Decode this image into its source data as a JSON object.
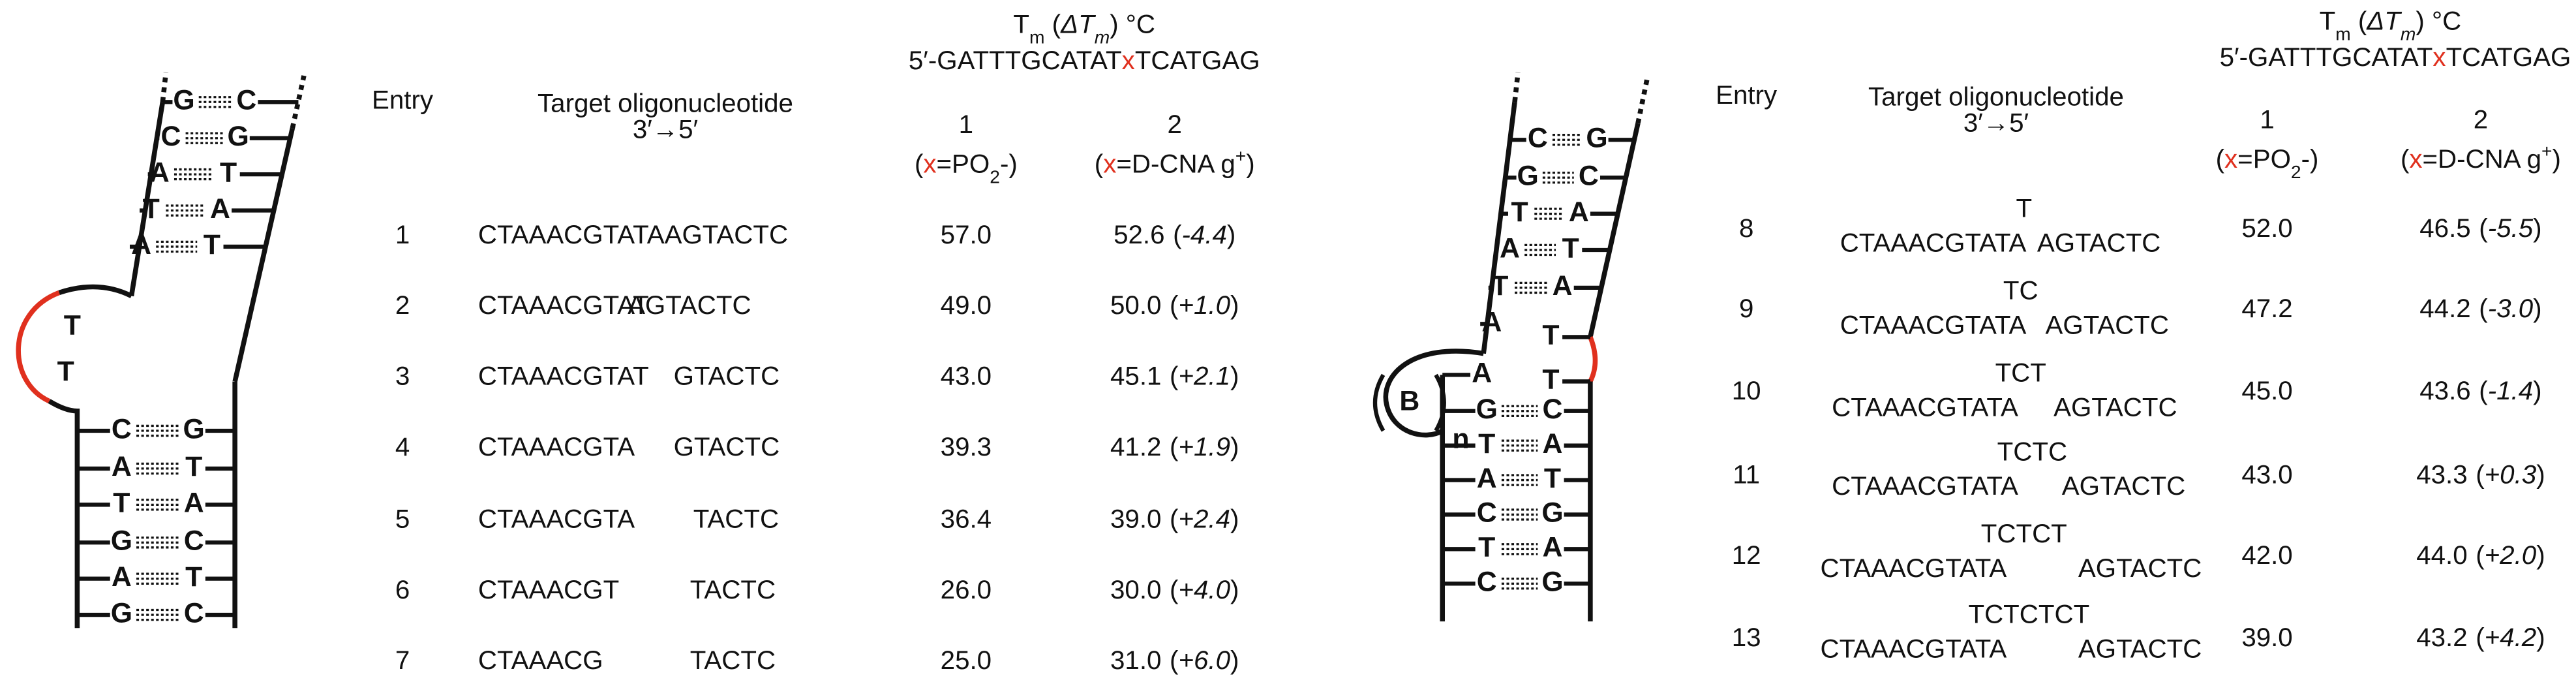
{
  "left_diagram": {
    "top_pairs": [
      [
        "G",
        "C"
      ],
      [
        "C",
        "G"
      ],
      [
        "A",
        "T"
      ],
      [
        "T",
        "A"
      ],
      [
        "A",
        "T"
      ]
    ],
    "loop": [
      "T",
      "T"
    ],
    "bottom_pairs": [
      [
        "C",
        "G"
      ],
      [
        "A",
        "T"
      ],
      [
        "T",
        "A"
      ],
      [
        "G",
        "C"
      ],
      [
        "A",
        "T"
      ],
      [
        "G",
        "C"
      ]
    ]
  },
  "left_table": {
    "header": {
      "entry": "Entry",
      "target": "Target oligonucleotide",
      "direction": "3′→5′",
      "tm": [
        "T",
        "m",
        " (",
        "ΔT",
        "m",
        ") °C"
      ],
      "sequence": [
        "5′-GATTTGCATAT",
        "x",
        "TCATGAG"
      ],
      "col1": {
        "number": "1",
        "label": [
          "(",
          "x",
          "=PO",
          "2",
          "-)"
        ]
      },
      "col2": {
        "number": "2",
        "label": [
          "(",
          "x",
          "=D-CNA g",
          "+",
          ")"
        ]
      }
    },
    "rows": [
      {
        "entry": "1",
        "target": [
          "CTAAACGTATAAGTACTC"
        ],
        "tm1": "57.0",
        "tm2": "52.6",
        "dtm": "(-4.4)"
      },
      {
        "entry": "2",
        "target": [
          "CTAAACGTAT",
          "AGTACTC"
        ],
        "tm1": "49.0",
        "tm2": "50.0",
        "dtm": "(+1.0)"
      },
      {
        "entry": "3",
        "target": [
          "CTAAACGTAT",
          "GTACTC"
        ],
        "tm1": "43.0",
        "tm2": "45.1",
        "dtm": "(+2.1)"
      },
      {
        "entry": "4",
        "target": [
          "CTAAACGTA",
          "GTACTC"
        ],
        "tm1": "39.3",
        "tm2": "41.2",
        "dtm": "(+1.9)"
      },
      {
        "entry": "5",
        "target": [
          "CTAAACGTA",
          "TACTC"
        ],
        "tm1": "36.4",
        "tm2": "39.0",
        "dtm": "(+2.4)"
      },
      {
        "entry": "6",
        "target": [
          "CTAAACGT",
          "TACTC"
        ],
        "tm1": "26.0",
        "tm2": "30.0",
        "dtm": "(+4.0)"
      },
      {
        "entry": "7",
        "target": [
          "CTAAACG",
          "TACTC"
        ],
        "tm1": "25.0",
        "tm2": "31.0",
        "dtm": "(+6.0)"
      }
    ]
  },
  "right_diagram": {
    "top_pairs": [
      [
        "C",
        "G"
      ],
      [
        "G",
        "C"
      ],
      [
        "T",
        "A"
      ],
      [
        "A",
        "T"
      ],
      [
        "T",
        "A"
      ]
    ],
    "unpaired": [
      [
        "A",
        "T"
      ],
      [
        "A",
        "T"
      ]
    ],
    "bulge": {
      "base": "B",
      "subscript": "n"
    },
    "bottom_pairs": [
      [
        "G",
        "C"
      ],
      [
        "T",
        "A"
      ],
      [
        "A",
        "T"
      ],
      [
        "C",
        "G"
      ],
      [
        "T",
        "A"
      ],
      [
        "C",
        "G"
      ]
    ]
  },
  "right_table": {
    "header": {
      "entry": "Entry",
      "target": "Target oligonucleotide",
      "direction": "3′→5′",
      "tm": [
        "T",
        "m",
        " (",
        "ΔT",
        "m",
        ") °C"
      ],
      "sequence": [
        "5′-GATTTGCATAT",
        "x",
        "TCATGAG"
      ],
      "col1": {
        "number": "1",
        "label": [
          "(",
          "x",
          "=PO",
          "2",
          "-)"
        ]
      },
      "col2": {
        "number": "2",
        "label": [
          "(",
          "x",
          "=D-CNA g",
          "+",
          ")"
        ]
      }
    },
    "rows": [
      {
        "entry": "8",
        "insert": "T",
        "target": [
          "CTAAACGTATA",
          "AGTACTC"
        ],
        "tm1": "52.0",
        "tm2": "46.5",
        "dtm": "(-5.5)"
      },
      {
        "entry": "9",
        "insert": "TC",
        "target": [
          "CTAAACGTATA",
          "AGTACTC"
        ],
        "tm1": "47.2",
        "tm2": "44.2",
        "dtm": "(-3.0)"
      },
      {
        "entry": "10",
        "insert": "TCT",
        "target": [
          "CTAAACGTATA",
          "AGTACTC"
        ],
        "tm1": "45.0",
        "tm2": "43.6",
        "dtm": "(-1.4)"
      },
      {
        "entry": "11",
        "insert": "TCTC",
        "target": [
          "CTAAACGTATA",
          "AGTACTC"
        ],
        "tm1": "43.0",
        "tm2": "43.3",
        "dtm": "(+0.3)"
      },
      {
        "entry": "12",
        "insert": "TCTCT",
        "target": [
          "CTAAACGTATA",
          "AGTACTC"
        ],
        "tm1": "42.0",
        "tm2": "44.0",
        "dtm": "(+2.0)"
      },
      {
        "entry": "13",
        "insert": "TCTCTCT",
        "target": [
          "CTAAACGTATA",
          "AGTACTC"
        ],
        "tm1": "39.0",
        "tm2": "43.2",
        "dtm": "(+4.2)"
      }
    ]
  }
}
